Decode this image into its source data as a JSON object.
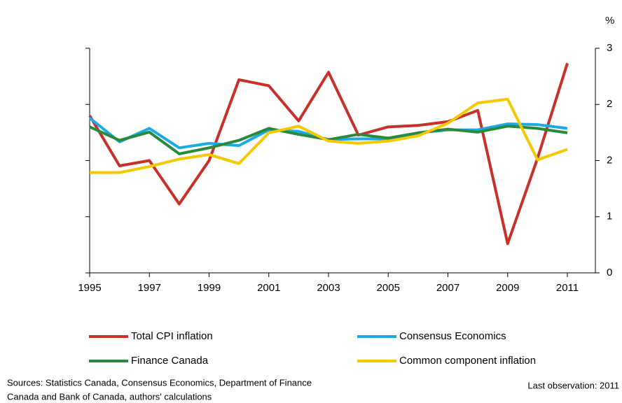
{
  "chart_data": {
    "type": "line",
    "y_unit": "%",
    "x": [
      1995,
      1996,
      1997,
      1998,
      1999,
      2000,
      2001,
      2002,
      2003,
      2004,
      2005,
      2006,
      2007,
      2008,
      2009,
      2010,
      2011
    ],
    "xlim": [
      1995,
      2011
    ],
    "xticks": [
      1995,
      1997,
      1999,
      2001,
      2003,
      2005,
      2007,
      2009,
      2011
    ],
    "ylim": [
      0,
      3
    ],
    "yticks": [
      0,
      {
        "value": 0.75,
        "label": "1"
      },
      {
        "value": 1.5,
        "label": "2"
      },
      {
        "value": 2.25,
        "label": "2"
      },
      3
    ],
    "grid": false,
    "series": [
      {
        "name": "Total CPI inflation",
        "color": "#c8312a",
        "values": [
          2.1,
          1.43,
          1.5,
          0.92,
          1.5,
          2.58,
          2.5,
          2.03,
          2.68,
          1.84,
          1.95,
          1.97,
          2.02,
          2.17,
          0.39,
          1.53,
          2.8
        ]
      },
      {
        "name": "Consensus Economics",
        "color": "#1aabe6",
        "values": [
          2.07,
          1.75,
          1.93,
          1.67,
          1.73,
          1.7,
          1.91,
          1.89,
          1.78,
          1.79,
          1.79,
          1.87,
          1.91,
          1.91,
          1.99,
          1.98,
          1.93
        ]
      },
      {
        "name": "Finance Canada",
        "color": "#2a8a3c",
        "values": [
          1.95,
          1.77,
          1.88,
          1.59,
          1.67,
          1.77,
          1.93,
          1.85,
          1.78,
          1.85,
          1.8,
          1.87,
          1.92,
          1.88,
          1.96,
          1.93,
          1.87
        ]
      },
      {
        "name": "Common component inflation",
        "color": "#f5c800",
        "values": [
          1.34,
          1.34,
          1.42,
          1.52,
          1.58,
          1.46,
          1.87,
          1.96,
          1.76,
          1.73,
          1.76,
          1.83,
          2.0,
          2.27,
          2.32,
          1.51,
          1.65
        ]
      }
    ],
    "source_lines": [
      "Sources: Statistics Canada, Consensus Economics, Department of Finance",
      "Canada and Bank of Canada, authors' calculations"
    ],
    "last_observation": "Last observation: 2011"
  }
}
